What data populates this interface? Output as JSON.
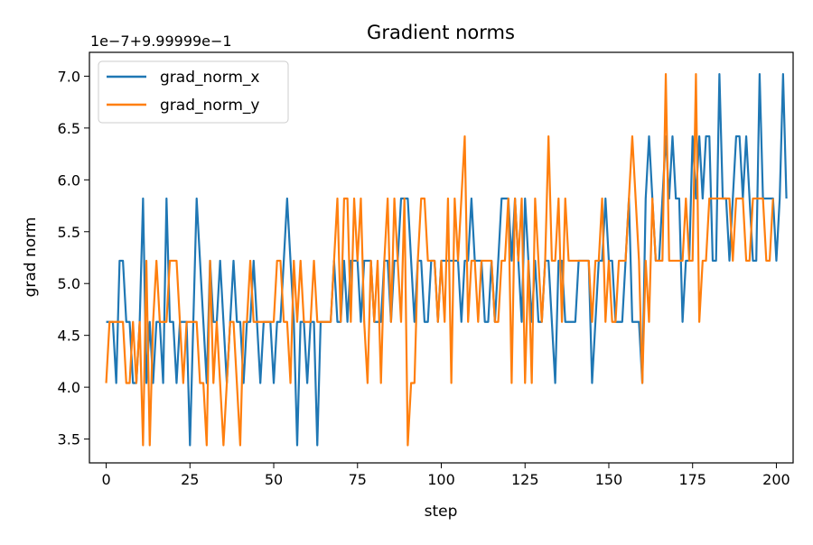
{
  "chart_data": {
    "type": "line",
    "title": "Gradient norms",
    "xlabel": "step",
    "ylabel": "grad norm",
    "offset_label": "1e−7+9.99999e−1",
    "xlim": [
      -5,
      205
    ],
    "ylim": [
      3.27,
      7.23
    ],
    "xticks": [
      0,
      25,
      50,
      75,
      100,
      125,
      150,
      175,
      200
    ],
    "yticks": [
      3.5,
      4.0,
      4.5,
      5.0,
      5.5,
      6.0,
      6.5,
      7.0
    ],
    "ytick_labels": [
      "3.5",
      "4.0",
      "4.5",
      "5.0",
      "5.5",
      "6.0",
      "6.5",
      "7.0"
    ],
    "grid": false,
    "legend": "top-left",
    "series": [
      {
        "name": "grad_norm_x",
        "color": "#1f77b4",
        "values": [
          4.63,
          4.63,
          4.63,
          4.04,
          5.22,
          5.22,
          4.63,
          4.63,
          4.04,
          4.04,
          4.63,
          5.82,
          4.04,
          4.63,
          4.04,
          4.63,
          4.63,
          4.04,
          5.82,
          4.63,
          4.63,
          4.04,
          4.63,
          4.63,
          4.63,
          3.44,
          4.63,
          5.82,
          5.22,
          4.63,
          4.04,
          5.22,
          4.63,
          4.63,
          5.22,
          4.63,
          4.04,
          4.63,
          5.22,
          4.63,
          4.63,
          4.04,
          4.63,
          4.63,
          5.22,
          4.63,
          4.04,
          4.63,
          4.63,
          4.63,
          4.04,
          4.63,
          4.63,
          5.22,
          5.82,
          5.22,
          4.63,
          3.44,
          4.63,
          4.63,
          4.04,
          4.63,
          4.63,
          3.44,
          4.63,
          4.63,
          4.63,
          4.63,
          5.22,
          4.63,
          4.63,
          5.22,
          4.63,
          5.22,
          5.22,
          5.22,
          4.63,
          5.22,
          5.22,
          5.22,
          4.63,
          4.63,
          4.63,
          5.22,
          5.22,
          4.63,
          5.22,
          5.22,
          5.82,
          5.82,
          5.82,
          5.22,
          4.63,
          5.22,
          5.22,
          4.63,
          4.63,
          5.22,
          5.22,
          4.63,
          5.22,
          5.22,
          5.22,
          5.22,
          5.22,
          5.22,
          4.63,
          5.22,
          5.22,
          5.82,
          5.22,
          5.22,
          5.22,
          4.63,
          4.63,
          5.22,
          4.63,
          5.22,
          5.82,
          5.82,
          5.82,
          5.22,
          5.82,
          5.22,
          4.63,
          5.82,
          5.22,
          4.63,
          5.22,
          4.63,
          4.63,
          5.22,
          5.22,
          4.63,
          4.04,
          5.22,
          5.22,
          4.63,
          4.63,
          4.63,
          4.63,
          5.22,
          5.22,
          5.22,
          5.22,
          4.04,
          4.63,
          5.22,
          5.22,
          5.82,
          5.22,
          5.22,
          4.63,
          4.63,
          4.63,
          5.22,
          5.82,
          4.63,
          4.63,
          4.63,
          4.04,
          5.82,
          6.42,
          5.82,
          5.22,
          5.22,
          5.82,
          6.42,
          5.82,
          6.42,
          5.82,
          5.82,
          4.63,
          5.22,
          5.22,
          6.42,
          5.82,
          6.42,
          5.82,
          6.42,
          6.42,
          5.22,
          5.22,
          7.02,
          5.82,
          5.82,
          5.22,
          5.82,
          6.42,
          6.42,
          5.82,
          6.42,
          5.82,
          5.22,
          5.22,
          7.02,
          5.82,
          5.82,
          5.82,
          5.82,
          5.22,
          5.82,
          7.02,
          5.82
        ]
      },
      {
        "name": "grad_norm_y",
        "color": "#ff7f0e",
        "values": [
          4.04,
          4.63,
          4.63,
          4.63,
          4.63,
          4.63,
          4.04,
          4.04,
          4.63,
          4.04,
          4.63,
          3.44,
          5.22,
          3.44,
          4.63,
          5.22,
          4.63,
          4.63,
          4.63,
          5.22,
          5.22,
          5.22,
          4.63,
          4.04,
          4.63,
          4.63,
          4.63,
          4.63,
          4.04,
          4.04,
          3.44,
          5.22,
          4.04,
          4.63,
          4.04,
          3.44,
          4.04,
          4.63,
          4.63,
          4.04,
          3.44,
          4.63,
          4.63,
          5.22,
          4.63,
          4.63,
          4.63,
          4.63,
          4.63,
          4.63,
          4.63,
          5.22,
          5.22,
          4.63,
          4.63,
          4.04,
          5.22,
          4.63,
          5.22,
          4.63,
          4.63,
          4.63,
          5.22,
          4.63,
          4.63,
          4.63,
          4.63,
          4.63,
          5.22,
          5.82,
          4.63,
          5.82,
          5.82,
          4.63,
          5.82,
          5.22,
          5.82,
          4.63,
          4.04,
          5.22,
          4.63,
          5.22,
          4.04,
          5.22,
          5.82,
          4.63,
          5.82,
          5.22,
          4.63,
          5.82,
          3.44,
          4.04,
          4.04,
          5.22,
          5.82,
          5.82,
          5.22,
          5.22,
          5.22,
          4.63,
          5.22,
          4.63,
          5.82,
          4.04,
          5.82,
          5.22,
          5.82,
          6.42,
          4.63,
          5.22,
          5.22,
          4.63,
          5.22,
          5.22,
          5.22,
          5.22,
          4.63,
          4.63,
          5.22,
          5.22,
          5.82,
          4.04,
          5.82,
          5.22,
          5.82,
          4.04,
          5.22,
          4.04,
          5.82,
          5.22,
          4.63,
          5.22,
          6.42,
          5.22,
          5.22,
          5.82,
          4.63,
          5.82,
          5.22,
          5.22,
          5.22,
          5.22,
          5.22,
          5.22,
          5.22,
          4.63,
          5.22,
          5.22,
          5.82,
          4.63,
          5.22,
          4.63,
          4.63,
          5.22,
          5.22,
          5.22,
          5.82,
          6.42,
          5.82,
          5.22,
          4.04,
          5.22,
          4.63,
          5.82,
          5.22,
          5.22,
          5.22,
          7.02,
          5.22,
          5.22,
          5.22,
          5.22,
          5.22,
          5.82,
          5.22,
          5.22,
          7.02,
          4.63,
          5.22,
          5.22,
          5.82,
          5.82,
          5.82,
          5.82,
          5.82,
          5.82,
          5.82,
          5.22,
          5.82,
          5.82,
          5.82,
          5.22,
          5.22,
          5.82,
          5.82,
          5.82,
          5.82,
          5.22,
          5.22,
          5.82
        ]
      }
    ]
  }
}
